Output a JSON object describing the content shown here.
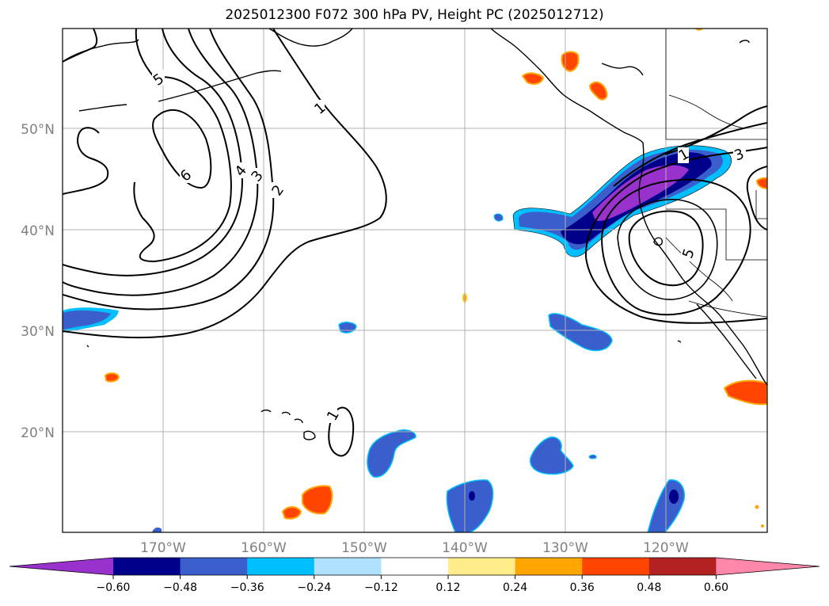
{
  "title": "2025012300 F072 300 hPa PV, Height PC (2025012712)",
  "map": {
    "lat_labels": [
      "50°N",
      "40°N",
      "30°N",
      "20°N"
    ],
    "lon_labels": [
      "170°W",
      "160°W",
      "150°W",
      "140°W",
      "130°W",
      "120°W"
    ],
    "lon_range": [
      -180,
      -110
    ],
    "lat_range": [
      10,
      60
    ],
    "gridlines": true
  },
  "contour_labels": [
    "5",
    "1",
    "6",
    "4",
    "3",
    "2",
    "3",
    "1",
    "5",
    "1"
  ],
  "colorbar": {
    "ticks": [
      "−0.60",
      "−0.48",
      "−0.36",
      "−0.24",
      "−0.12",
      "0.12",
      "0.24",
      "0.36",
      "0.48",
      "0.60"
    ],
    "colors": [
      "#9932CC",
      "#00008B",
      "#3A5FCD",
      "#00BFFF",
      "#B0E2FF",
      "#FFFFFF",
      "#FFEC8B",
      "#FFA500",
      "#FF4500",
      "#B22222",
      "#FF88AA"
    ],
    "extend": "both"
  }
}
